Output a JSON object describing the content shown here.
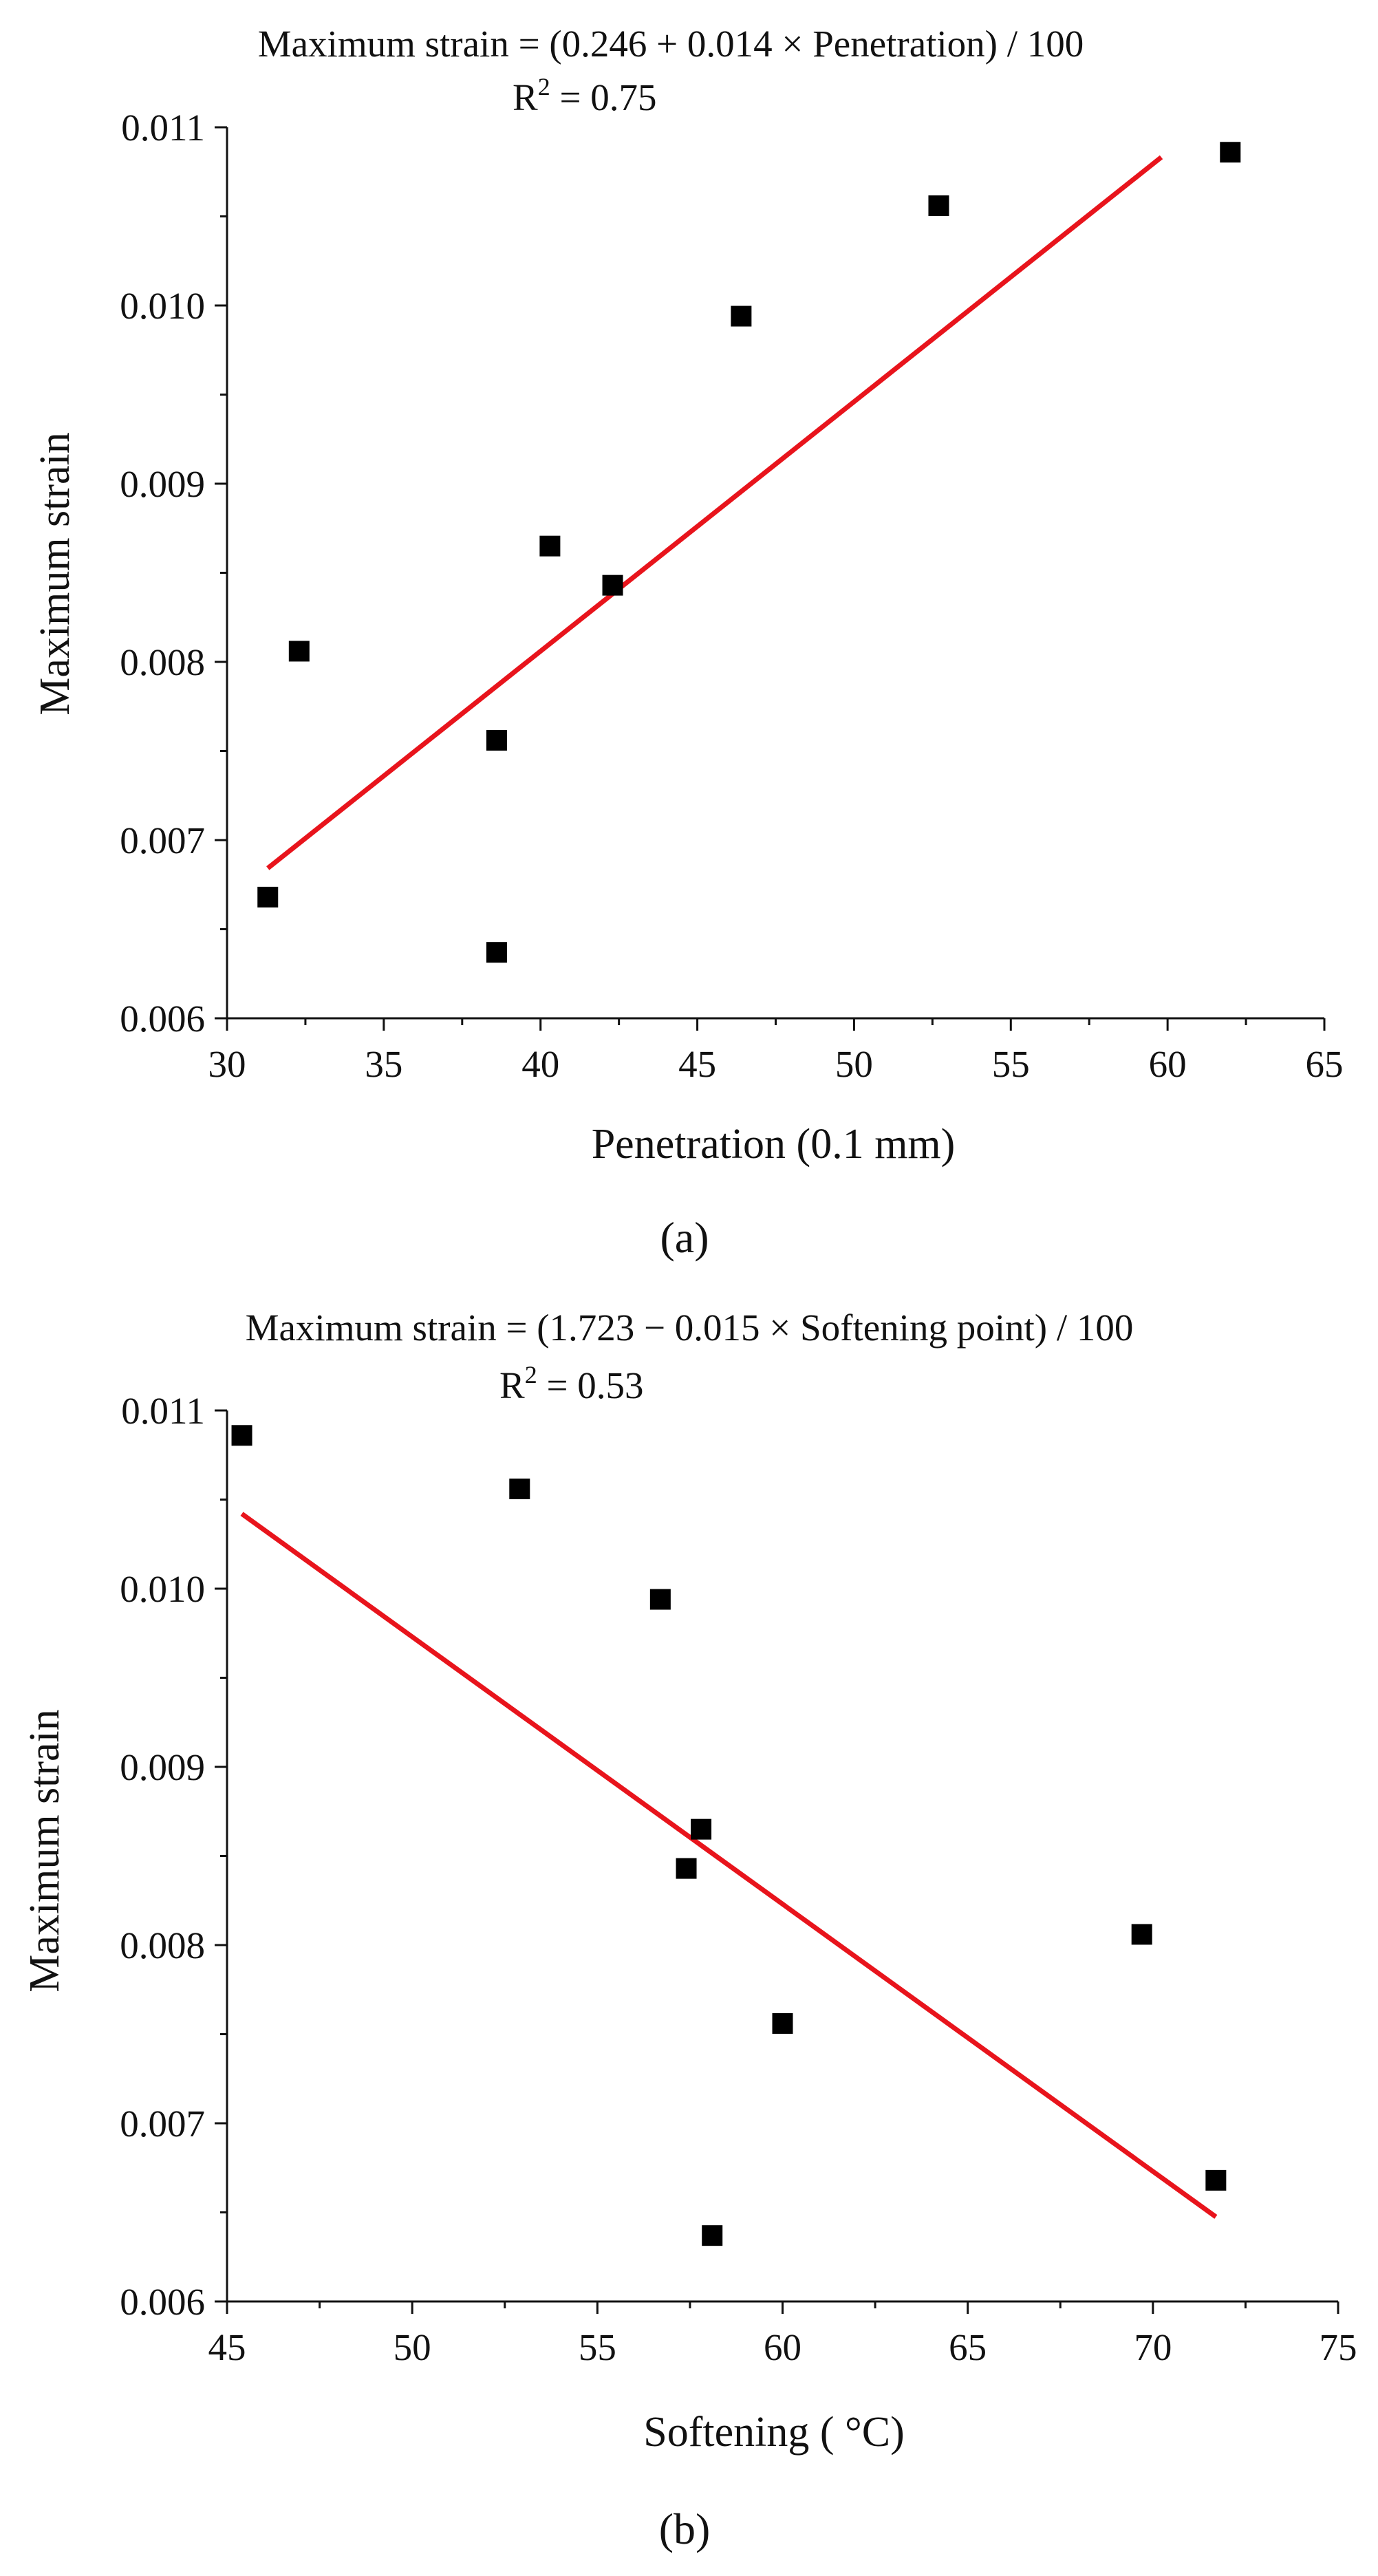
{
  "colors": {
    "fit_line": "#e8141c",
    "marker": "#000000",
    "axis": "#111111"
  },
  "chart_data": [
    {
      "type": "scatter",
      "panel": "a",
      "panel_tag": "(a)",
      "equation": "Maximum strain = (0.246 + 0.014 × Penetration) / 100",
      "r2_prefix": "R",
      "r2_exponent": "2",
      "r2_value": " = 0.75",
      "xlabel": "Penetration (0.1 mm)",
      "ylabel": "Maximum strain",
      "xlim": [
        30,
        65
      ],
      "ylim": [
        0.006,
        0.011
      ],
      "xticks": [
        30,
        35,
        40,
        45,
        50,
        55,
        60,
        65
      ],
      "xtick_labels": [
        "30",
        "35",
        "40",
        "45",
        "50",
        "55",
        "60",
        "65"
      ],
      "yticks": [
        0.006,
        0.007,
        0.008,
        0.009,
        0.01,
        0.011
      ],
      "ytick_labels": [
        "0.006",
        "0.007",
        "0.008",
        "0.009",
        "0.010",
        "0.011"
      ],
      "grid": false,
      "points": [
        {
          "x": 31.3,
          "y": 0.00668
        },
        {
          "x": 32.3,
          "y": 0.00806
        },
        {
          "x": 38.6,
          "y": 0.00756
        },
        {
          "x": 38.6,
          "y": 0.00637
        },
        {
          "x": 40.3,
          "y": 0.00865
        },
        {
          "x": 42.3,
          "y": 0.00843
        },
        {
          "x": 46.4,
          "y": 0.00994
        },
        {
          "x": 52.7,
          "y": 0.01056
        },
        {
          "x": 62.0,
          "y": 0.01086
        }
      ],
      "fit": {
        "intercept": 0.00246,
        "slope": 0.00014,
        "x_range": [
          31.3,
          59.8
        ]
      }
    },
    {
      "type": "scatter",
      "panel": "b",
      "panel_tag": "(b)",
      "equation": "Maximum strain = (1.723 − 0.015 × Softening point) / 100",
      "r2_prefix": "R",
      "r2_exponent": "2",
      "r2_value": " = 0.53",
      "xlabel": "Softening ( °C)",
      "ylabel": "Maximum strain",
      "xlim": [
        45,
        75
      ],
      "ylim": [
        0.006,
        0.011
      ],
      "xticks": [
        45,
        50,
        55,
        60,
        65,
        70,
        75
      ],
      "xtick_labels": [
        "45",
        "50",
        "55",
        "60",
        "65",
        "70",
        "75"
      ],
      "yticks": [
        0.006,
        0.007,
        0.008,
        0.009,
        0.01,
        0.011
      ],
      "ytick_labels": [
        "0.006",
        "0.007",
        "0.008",
        "0.009",
        "0.010",
        "0.011"
      ],
      "grid": false,
      "points": [
        {
          "x": 45.4,
          "y": 0.01086
        },
        {
          "x": 52.9,
          "y": 0.01056
        },
        {
          "x": 56.7,
          "y": 0.00994
        },
        {
          "x": 57.4,
          "y": 0.00843
        },
        {
          "x": 57.8,
          "y": 0.00865
        },
        {
          "x": 58.1,
          "y": 0.00637
        },
        {
          "x": 60.0,
          "y": 0.00756
        },
        {
          "x": 69.7,
          "y": 0.00806
        },
        {
          "x": 71.7,
          "y": 0.00668
        }
      ],
      "fit": {
        "intercept": 0.01723,
        "slope": -0.00015,
        "x_range": [
          45.4,
          71.7
        ]
      }
    }
  ]
}
